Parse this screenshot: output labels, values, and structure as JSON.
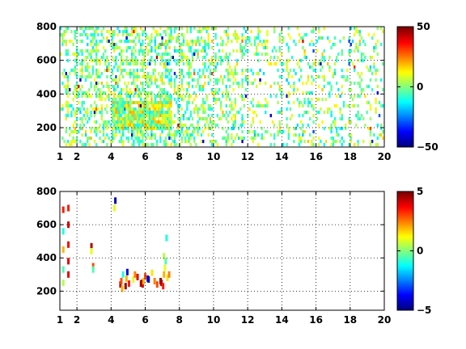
{
  "chart_data": [
    {
      "type": "heatmap",
      "title": "",
      "xlabel": "",
      "ylabel": "",
      "xlim": [
        1,
        20
      ],
      "ylim": [
        85,
        800
      ],
      "xticks": [
        1,
        2,
        4,
        6,
        8,
        10,
        12,
        14,
        16,
        18,
        20
      ],
      "xtick_labels": [
        "1",
        "2",
        "4",
        "6",
        "8",
        "10",
        "12",
        "14",
        "16",
        "18",
        "20"
      ],
      "yticks": [
        200,
        400,
        600,
        800
      ],
      "ytick_labels": [
        "200",
        "400",
        "600",
        "800"
      ],
      "grid": true,
      "colorscale": "jet",
      "colorbar": {
        "range": [
          -50,
          50
        ],
        "ticks": [
          -50,
          0,
          50
        ],
        "tick_labels": [
          "−50",
          "0",
          "50"
        ]
      },
      "density": "dense speckle over whole panel; strongest cluster around x 4–7.5, y 200–350; sparser columns beyond x 12",
      "value_distribution": "mostly cyan/green/yellow (about −15 to 15), few extremes"
    },
    {
      "type": "heatmap",
      "title": "",
      "xlabel": "",
      "ylabel": "",
      "xlim": [
        1,
        20
      ],
      "ylim": [
        85,
        800
      ],
      "xticks": [
        1,
        2,
        4,
        6,
        8,
        10,
        12,
        14,
        16,
        18,
        20
      ],
      "xtick_labels": [
        "1",
        "2",
        "4",
        "6",
        "8",
        "10",
        "12",
        "14",
        "16",
        "18",
        "20"
      ],
      "yticks": [
        200,
        400,
        600,
        800
      ],
      "ytick_labels": [
        "200",
        "400",
        "600",
        "800"
      ],
      "grid": true,
      "colorscale": "jet",
      "colorbar": {
        "range": [
          -5,
          5
        ],
        "ticks": [
          -5,
          0,
          5
        ],
        "tick_labels": [
          "−5",
          "0",
          "5"
        ]
      },
      "points": [
        [
          1.2,
          250,
          0.5
        ],
        [
          1.2,
          330,
          -0.5
        ],
        [
          1.2,
          450,
          2.0
        ],
        [
          1.2,
          560,
          -1.0
        ],
        [
          1.2,
          690,
          3.5
        ],
        [
          1.5,
          300,
          4.0
        ],
        [
          1.5,
          480,
          3.8
        ],
        [
          1.5,
          600,
          4.2
        ],
        [
          1.5,
          700,
          3.5
        ],
        [
          1.5,
          380,
          4.0
        ],
        [
          2.85,
          470,
          4.5
        ],
        [
          2.85,
          440,
          1.0
        ],
        [
          2.95,
          350,
          3.0
        ],
        [
          2.95,
          330,
          -0.5
        ],
        [
          4.25,
          745,
          -4.5
        ],
        [
          4.2,
          700,
          1.0
        ],
        [
          4.55,
          240,
          4.5
        ],
        [
          4.6,
          260,
          3.0
        ],
        [
          4.65,
          215,
          2.0
        ],
        [
          4.7,
          300,
          -1.0
        ],
        [
          4.85,
          230,
          4.8
        ],
        [
          4.9,
          275,
          2.0
        ],
        [
          4.95,
          315,
          -4.0
        ],
        [
          5.05,
          245,
          3.5
        ],
        [
          5.3,
          270,
          1.0
        ],
        [
          5.4,
          300,
          2.5
        ],
        [
          5.55,
          285,
          4.0
        ],
        [
          5.75,
          245,
          4.5
        ],
        [
          5.8,
          250,
          4.8
        ],
        [
          5.85,
          240,
          4.2
        ],
        [
          5.9,
          260,
          2.0
        ],
        [
          6.0,
          290,
          3.0
        ],
        [
          6.15,
          275,
          -4.5
        ],
        [
          6.2,
          270,
          -4.2
        ],
        [
          6.4,
          310,
          1.5
        ],
        [
          6.55,
          260,
          2.5
        ],
        [
          6.7,
          240,
          3.0
        ],
        [
          6.9,
          260,
          4.8
        ],
        [
          6.95,
          250,
          4.5
        ],
        [
          7.05,
          230,
          3.5
        ],
        [
          7.1,
          300,
          2.0
        ],
        [
          7.15,
          340,
          1.0
        ],
        [
          7.2,
          380,
          -0.5
        ],
        [
          7.1,
          410,
          0.5
        ],
        [
          7.25,
          520,
          -1.0
        ],
        [
          7.3,
          280,
          1.5
        ],
        [
          7.4,
          300,
          2.5
        ]
      ]
    }
  ]
}
